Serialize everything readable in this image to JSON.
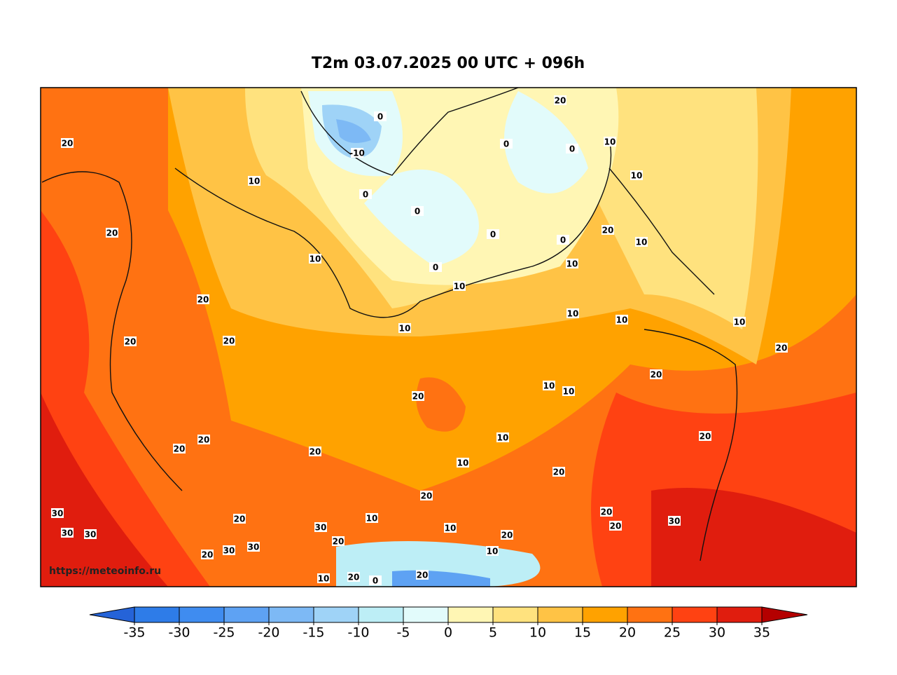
{
  "title": "T2m 03.07.2025 00 UTC + 096h",
  "watermark": "https://meteoinfo.ru",
  "contour_labels": [
    "20",
    "10",
    "20",
    "0",
    "-10",
    "0",
    "0",
    "20",
    "10",
    "10",
    "0",
    "0",
    "0",
    "0",
    "20",
    "10",
    "10",
    "0",
    "10",
    "10",
    "20",
    "10",
    "10",
    "10",
    "10",
    "20",
    "20",
    "20",
    "20",
    "10",
    "10",
    "20",
    "10",
    "20",
    "20",
    "20",
    "20",
    "10",
    "20",
    "20",
    "30",
    "20",
    "30",
    "30",
    "20",
    "10",
    "10",
    "20",
    "30",
    "30",
    "20",
    "20",
    "30",
    "30",
    "20",
    "10",
    "10",
    "20",
    "20",
    "0"
  ],
  "colorbar": {
    "ticks": [
      -35,
      -30,
      -25,
      -20,
      -15,
      -10,
      -5,
      0,
      5,
      10,
      15,
      20,
      25,
      30,
      35
    ],
    "colors": [
      "#2563d8",
      "#2e7ce8",
      "#3f8cf0",
      "#5ea2f3",
      "#7db9f5",
      "#9fd3f7",
      "#bdeef6",
      "#e2fbfb",
      "#fff6b4",
      "#ffe27e",
      "#ffc345",
      "#ffa200",
      "#ff7212",
      "#ff4212",
      "#e01d0e",
      "#b40000"
    ]
  }
}
